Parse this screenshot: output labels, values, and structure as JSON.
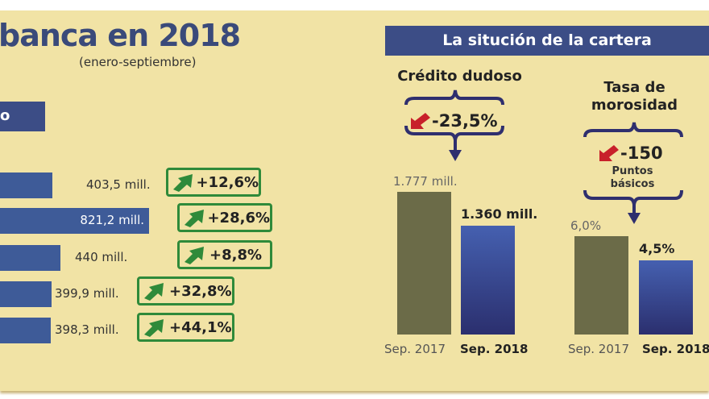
{
  "left": {
    "title": "banca en 2018",
    "subtitle": "(enero-septiembre)",
    "box_label": "o",
    "rows": [
      {
        "value": 403.5,
        "label": "403,5 mill.",
        "change": "+12,6%"
      },
      {
        "value": 821.2,
        "label": "821,2 mill.",
        "change": "+28,6%"
      },
      {
        "value": 440,
        "label": "440 mill.",
        "change": "+8,8%"
      },
      {
        "value": 399.9,
        "label": "399,9 mill.",
        "change": "+32,8%"
      },
      {
        "value": 398.3,
        "label": "398,3 mill.",
        "change": "+44,1%"
      }
    ]
  },
  "right": {
    "header": "La situción de la cartera"
  },
  "chart_data": [
    {
      "type": "bar",
      "title": "Crédito dudoso",
      "change": "-23,5%",
      "categories": [
        "Sep. 2017",
        "Sep. 2018"
      ],
      "values": [
        1777,
        1360
      ],
      "data_labels": [
        "1.777 mill.",
        "1.360 mill."
      ]
    },
    {
      "type": "bar",
      "title": "Tasa de morosidad",
      "change": "-150",
      "change_unit": "Puntos básicos",
      "categories": [
        "Sep. 2017",
        "Sep. 2018"
      ],
      "values": [
        6.0,
        4.5
      ],
      "data_labels": [
        "6,0%",
        "4,5%"
      ]
    }
  ],
  "colors": {
    "navy": "#3c4d86",
    "bar_blue": "#3e5b98",
    "green": "#2f8a3a",
    "red": "#c8202a",
    "olive": "#6b6b48",
    "background": "#f1e3a5"
  }
}
